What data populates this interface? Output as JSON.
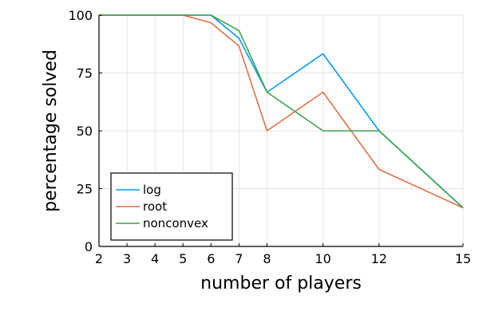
{
  "chart_data": {
    "type": "line",
    "xlabel": "number of players",
    "ylabel": "percentage solved",
    "xlim": [
      2,
      15
    ],
    "ylim": [
      0,
      100
    ],
    "x_ticks": [
      2,
      3,
      4,
      5,
      6,
      7,
      8,
      10,
      12,
      15
    ],
    "y_ticks": [
      0,
      25,
      50,
      75,
      100
    ],
    "grid": true,
    "legend_position": "bottom-left",
    "x": [
      2,
      3,
      4,
      5,
      6,
      7,
      8,
      10,
      12,
      15
    ],
    "series": [
      {
        "name": "log",
        "color": "#009af9",
        "values": [
          100,
          100,
          100,
          100,
          100,
          90,
          66.7,
          83.3,
          50,
          16.7
        ]
      },
      {
        "name": "root",
        "color": "#e26f46",
        "values": [
          100,
          100,
          100,
          100,
          96.7,
          86.7,
          50,
          66.7,
          33.3,
          16.7
        ]
      },
      {
        "name": "nonconvex",
        "color": "#3da44d",
        "values": [
          100,
          100,
          100,
          100,
          100,
          93.3,
          66.7,
          50,
          50,
          16.7
        ]
      }
    ]
  }
}
